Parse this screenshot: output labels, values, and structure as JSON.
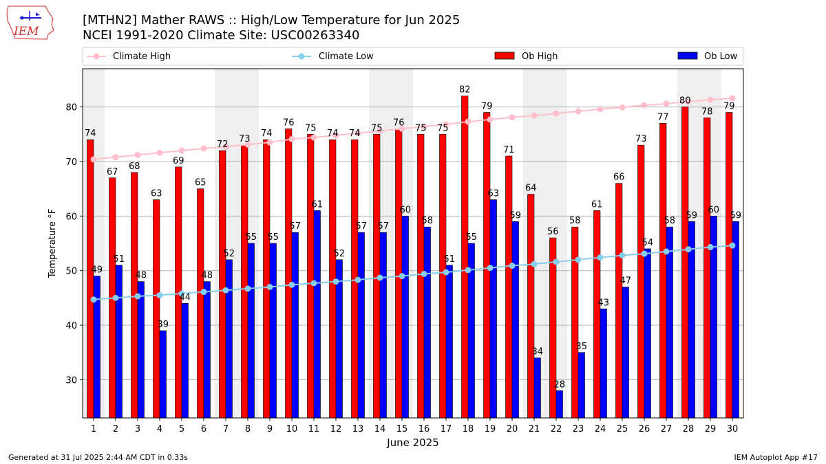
{
  "logo_text": "IEM",
  "footer": {
    "generated": "Generated at 31 Jul 2025 2:44 AM CDT in 0.33s",
    "app": "IEM Autoplot App #17"
  },
  "chart_data": {
    "type": "bar",
    "title": "[MTHN2] Mather RAWS :: High/Low Temperature for Jun 2025",
    "subtitle": "NCEI 1991-2020 Climate Site: USC00263340",
    "xlabel": "June 2025",
    "ylabel": "Temperature °F",
    "ylim": [
      23,
      87
    ],
    "yticks": [
      30,
      40,
      50,
      60,
      70,
      80
    ],
    "grid": true,
    "legend_position": "top",
    "weekend_shading_days": [
      1,
      7,
      8,
      14,
      15,
      21,
      22,
      28,
      29
    ],
    "categories": [
      1,
      2,
      3,
      4,
      5,
      6,
      7,
      8,
      9,
      10,
      11,
      12,
      13,
      14,
      15,
      16,
      17,
      18,
      19,
      20,
      21,
      22,
      23,
      24,
      25,
      26,
      27,
      28,
      29,
      30
    ],
    "series": [
      {
        "name": "Ob High",
        "type": "bar",
        "color": "#ff0000",
        "values": [
          74,
          67,
          68,
          63,
          69,
          65,
          72,
          73,
          74,
          76,
          75,
          74,
          74,
          75,
          76,
          75,
          75,
          82,
          79,
          71,
          64,
          56,
          58,
          61,
          66,
          73,
          77,
          80,
          78,
          79
        ]
      },
      {
        "name": "Ob Low",
        "type": "bar",
        "color": "#0000ff",
        "values": [
          49,
          51,
          48,
          39,
          44,
          48,
          52,
          55,
          55,
          57,
          61,
          52,
          57,
          57,
          60,
          58,
          51,
          55,
          63,
          59,
          34,
          28,
          35,
          43,
          47,
          54,
          58,
          59,
          60,
          59
        ]
      },
      {
        "name": "Climate High",
        "type": "line",
        "color": "#ffc0cb",
        "values": [
          70.4,
          70.8,
          71.2,
          71.6,
          72.0,
          72.4,
          72.7,
          73.1,
          73.5,
          74.1,
          74.4,
          74.8,
          75.2,
          75.6,
          76.0,
          76.4,
          76.8,
          77.3,
          77.7,
          78.1,
          78.4,
          78.8,
          79.2,
          79.6,
          79.9,
          80.3,
          80.6,
          81.0,
          81.3,
          81.6
        ]
      },
      {
        "name": "Climate Low",
        "type": "line",
        "color": "#87ceeb",
        "values": [
          44.7,
          45.0,
          45.3,
          45.5,
          45.8,
          46.1,
          46.4,
          46.7,
          47.0,
          47.4,
          47.7,
          48.0,
          48.3,
          48.7,
          49.0,
          49.4,
          49.7,
          50.1,
          50.5,
          50.9,
          51.2,
          51.6,
          52.0,
          52.4,
          52.8,
          53.1,
          53.5,
          53.9,
          54.3,
          54.6
        ]
      }
    ]
  }
}
